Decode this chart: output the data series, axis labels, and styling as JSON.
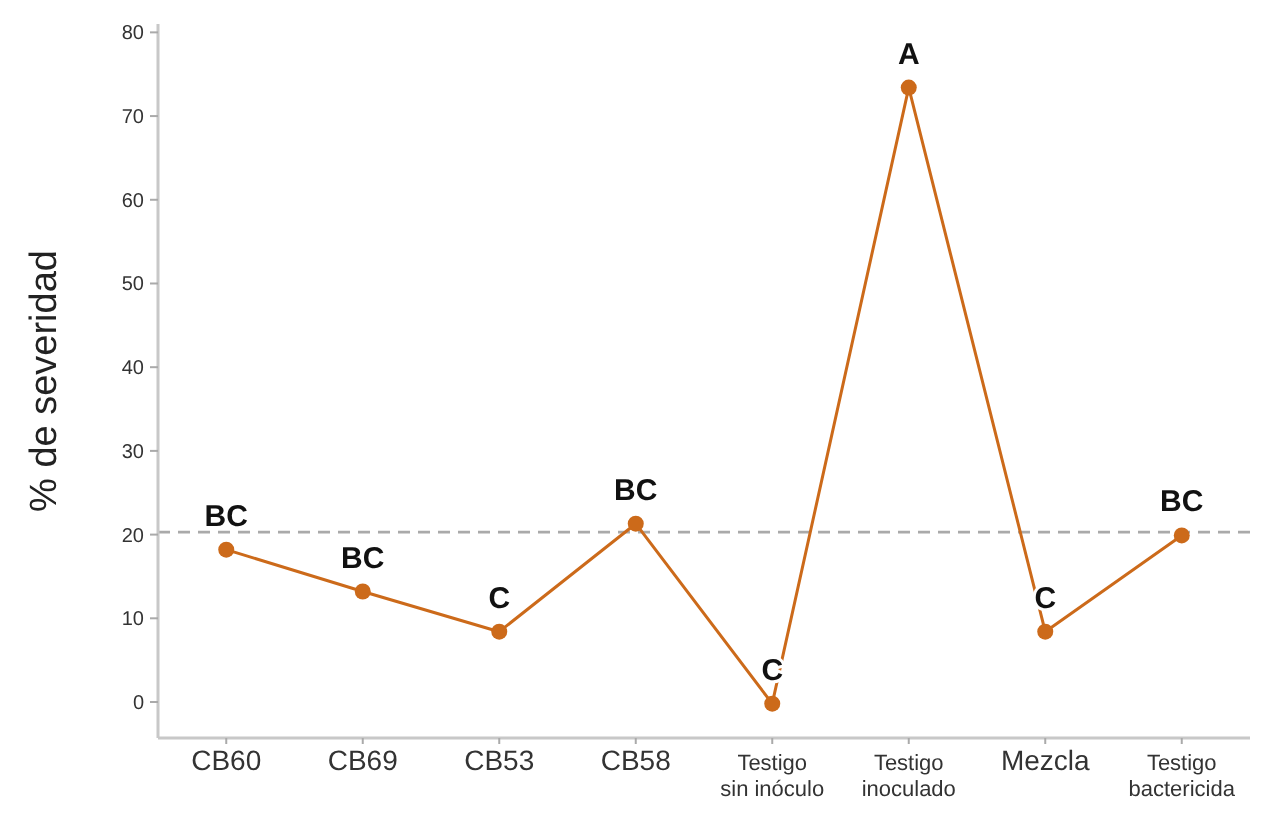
{
  "chart_data": {
    "type": "line",
    "ylabel": "% de severidad",
    "categories": [
      "CB60",
      "CB69",
      "CB53",
      "CB58",
      "Testigo\nsin inóculo",
      "Testigo\ninoculado",
      "Mezcla",
      "Testigo\nbactericida"
    ],
    "series": [
      {
        "color": "#cc6a1a",
        "values": [
          18.2,
          13.2,
          8.4,
          21.3,
          -0.2,
          73.4,
          8.4,
          19.9
        ]
      }
    ],
    "ylim": [
      -4.3,
      81
    ],
    "yticks": [
      0,
      10,
      20,
      30,
      40,
      50,
      60,
      70,
      80
    ],
    "grid": false,
    "marker": "circle",
    "line_style": "solid",
    "ref_lines": [
      {
        "axis": "y",
        "value": 20.3,
        "color": "#aaaaaa",
        "line_style": "dashed"
      }
    ],
    "annotations": [
      {
        "text": "BC",
        "x": "CB60",
        "y": 18.2
      },
      {
        "text": "BC",
        "x": "CB69",
        "y": 13.2
      },
      {
        "text": "C",
        "x": "CB53",
        "y": 8.4
      },
      {
        "text": "BC",
        "x": "CB58",
        "y": 21.3
      },
      {
        "text": "C",
        "x": "Testigo\nsin inóculo",
        "y": -0.2
      },
      {
        "text": "A",
        "x": "Testigo\ninoculado",
        "y": 73.4
      },
      {
        "text": "C",
        "x": "Mezcla",
        "y": 8.4
      },
      {
        "text": "BC",
        "x": "Testigo\nbactericida",
        "y": 19.9
      }
    ]
  }
}
